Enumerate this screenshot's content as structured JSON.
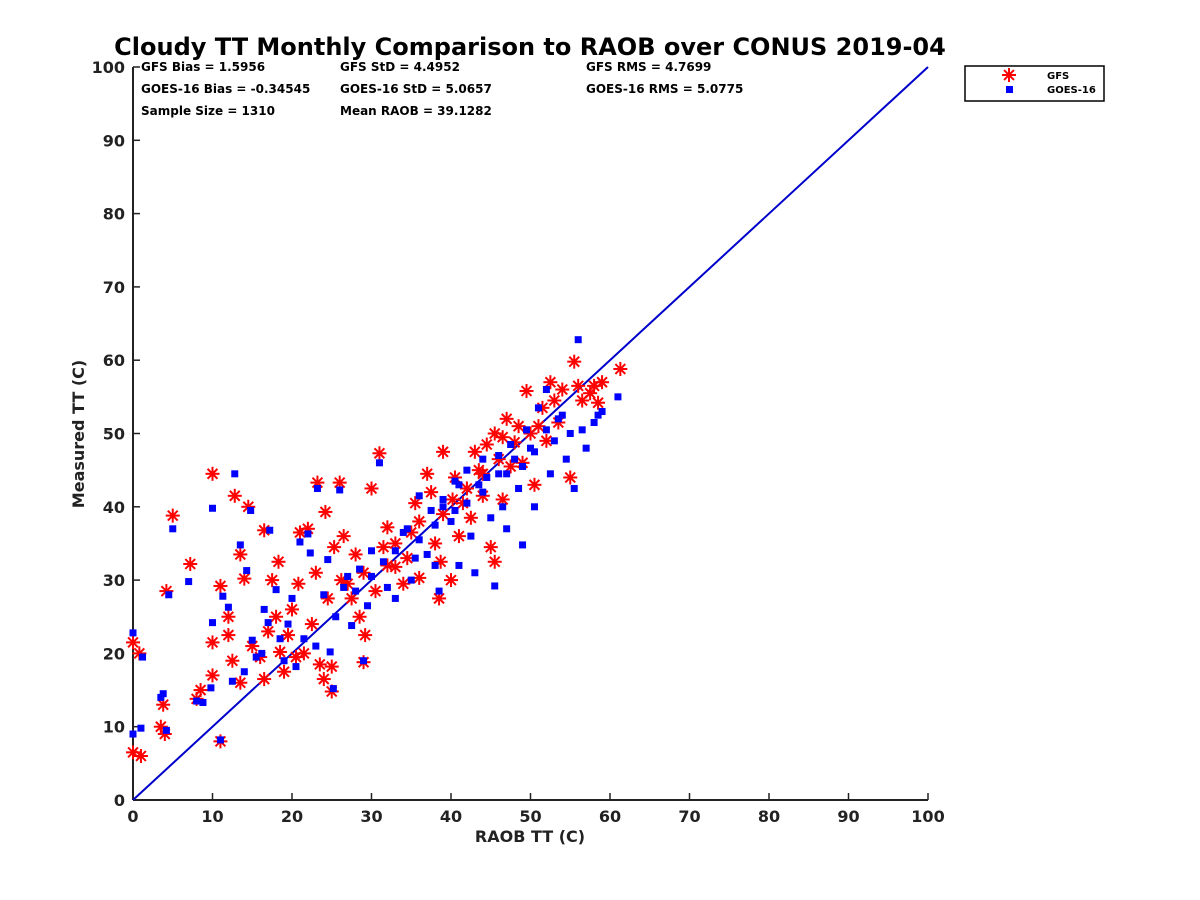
{
  "chart_data": {
    "type": "scatter",
    "title": "Cloudy TT Monthly Comparison to RAOB over CONUS 2019-04",
    "xlabel": "RAOB TT (C)",
    "ylabel": "Measured TT (C)",
    "xlim": [
      0,
      100
    ],
    "ylim": [
      0,
      100
    ],
    "xticks": [
      "0",
      "10",
      "20",
      "30",
      "40",
      "50",
      "60",
      "70",
      "80",
      "90",
      "100"
    ],
    "yticks": [
      "0",
      "10",
      "20",
      "30",
      "40",
      "50",
      "60",
      "70",
      "80",
      "90",
      "100"
    ],
    "grid": false,
    "legend_position": "top-right",
    "annotations": [
      "GFS Bias = 1.5956",
      "GFS StD = 4.4952",
      "GFS RMS = 4.7699",
      "GOES-16 Bias = -0.34545",
      "GOES-16 StD = 5.0657",
      "GOES-16 RMS = 5.0775",
      "Sample Size = 1310",
      "Mean RAOB = 39.1282"
    ],
    "reference_line": {
      "x": [
        0,
        100
      ],
      "y": [
        0,
        100
      ],
      "color": "#0000cc"
    },
    "series": [
      {
        "name": "GFS",
        "marker": "asterisk",
        "color": "#ff0000",
        "points": [
          [
            0,
            21.5
          ],
          [
            0.8,
            20
          ],
          [
            0,
            6.5
          ],
          [
            1,
            6
          ],
          [
            3.5,
            10
          ],
          [
            3.8,
            13
          ],
          [
            4,
            9
          ],
          [
            4.2,
            28.5
          ],
          [
            5,
            38.8
          ],
          [
            7.2,
            32.2
          ],
          [
            8,
            13.8
          ],
          [
            8.5,
            15
          ],
          [
            10,
            17
          ],
          [
            10,
            21.5
          ],
          [
            10,
            44.5
          ],
          [
            11,
            8
          ],
          [
            11,
            29.2
          ],
          [
            12,
            22.5
          ],
          [
            12,
            25
          ],
          [
            12.5,
            19
          ],
          [
            12.8,
            41.5
          ],
          [
            13.5,
            33.5
          ],
          [
            13.5,
            16
          ],
          [
            14,
            30.2
          ],
          [
            14.5,
            40
          ],
          [
            15,
            21
          ],
          [
            16,
            19.5
          ],
          [
            16.5,
            16.5
          ],
          [
            16.5,
            36.8
          ],
          [
            17,
            23
          ],
          [
            17.5,
            30
          ],
          [
            18,
            25
          ],
          [
            18.3,
            32.5
          ],
          [
            18.5,
            20.2
          ],
          [
            19,
            17.5
          ],
          [
            19.5,
            22.5
          ],
          [
            20,
            26
          ],
          [
            20.5,
            19.5
          ],
          [
            20.8,
            29.5
          ],
          [
            21,
            36.5
          ],
          [
            21.5,
            20
          ],
          [
            22,
            37
          ],
          [
            22.5,
            24
          ],
          [
            23,
            31
          ],
          [
            23.2,
            43.3
          ],
          [
            23.5,
            18.5
          ],
          [
            24,
            16.5
          ],
          [
            24.2,
            39.3
          ],
          [
            24.5,
            27.5
          ],
          [
            25,
            18.2
          ],
          [
            25,
            14.8
          ],
          [
            25.3,
            34.5
          ],
          [
            26,
            43.3
          ],
          [
            26.2,
            30
          ],
          [
            27,
            29.5
          ],
          [
            28,
            33.5
          ],
          [
            28.5,
            25
          ],
          [
            29,
            18.8
          ],
          [
            29.2,
            22.5
          ],
          [
            30,
            42.5
          ],
          [
            31,
            47.3
          ],
          [
            32,
            37.2
          ],
          [
            33,
            31.8
          ],
          [
            34,
            29.5
          ],
          [
            35.5,
            40.5
          ],
          [
            36,
            30.3
          ],
          [
            37,
            44.5
          ],
          [
            38.5,
            27.5
          ],
          [
            38.7,
            32.5
          ],
          [
            39,
            47.5
          ],
          [
            40,
            30
          ],
          [
            40.2,
            41
          ],
          [
            41,
            36
          ],
          [
            42.5,
            38.5
          ],
          [
            43,
            47.5
          ],
          [
            44,
            44.5
          ],
          [
            45,
            34.5
          ],
          [
            45.5,
            50
          ],
          [
            45.5,
            32.5
          ],
          [
            46.5,
            41
          ],
          [
            47,
            52
          ],
          [
            48,
            48.8
          ],
          [
            49,
            46
          ],
          [
            49.5,
            55.8
          ],
          [
            50.5,
            43
          ],
          [
            51,
            51
          ],
          [
            52,
            49
          ],
          [
            52.5,
            57
          ],
          [
            53,
            54.5
          ],
          [
            53.5,
            51.5
          ],
          [
            54,
            56
          ],
          [
            55,
            44
          ],
          [
            55.5,
            59.8
          ],
          [
            56,
            56.5
          ],
          [
            56.5,
            54.5
          ],
          [
            57.5,
            55.5
          ],
          [
            58,
            56.5
          ],
          [
            58.5,
            54.2
          ],
          [
            59,
            57
          ],
          [
            61.3,
            58.8
          ],
          [
            32,
            32
          ],
          [
            33,
            35
          ],
          [
            34.5,
            33
          ],
          [
            36,
            38
          ],
          [
            37.5,
            42
          ],
          [
            39,
            39
          ],
          [
            40.5,
            44
          ],
          [
            42,
            42.5
          ],
          [
            43.5,
            45
          ],
          [
            44.5,
            48.5
          ],
          [
            46,
            46.5
          ],
          [
            47.5,
            45.5
          ],
          [
            48.5,
            51
          ],
          [
            50,
            50
          ],
          [
            51.5,
            53.5
          ],
          [
            29,
            31
          ],
          [
            30.5,
            28.5
          ],
          [
            31.5,
            34.5
          ],
          [
            27.5,
            27.5
          ],
          [
            26.5,
            36
          ],
          [
            35,
            36.5
          ],
          [
            38,
            35
          ],
          [
            41.5,
            40.5
          ],
          [
            44,
            41.5
          ],
          [
            46.5,
            49.5
          ]
        ]
      },
      {
        "name": "GOES-16",
        "marker": "square",
        "color": "#0000ff",
        "points": [
          [
            0,
            22.8
          ],
          [
            0,
            9
          ],
          [
            1,
            9.8
          ],
          [
            1.2,
            19.5
          ],
          [
            3.5,
            14
          ],
          [
            3.8,
            14.5
          ],
          [
            4.2,
            9.5
          ],
          [
            4.5,
            28
          ],
          [
            5,
            37
          ],
          [
            7,
            29.8
          ],
          [
            8,
            13.5
          ],
          [
            8.8,
            13.3
          ],
          [
            9.8,
            15.3
          ],
          [
            10,
            24.2
          ],
          [
            10,
            39.8
          ],
          [
            11,
            8.2
          ],
          [
            11.3,
            27.8
          ],
          [
            12,
            26.3
          ],
          [
            12.5,
            16.2
          ],
          [
            12.8,
            44.5
          ],
          [
            13.5,
            34.8
          ],
          [
            14,
            17.5
          ],
          [
            14.3,
            31.3
          ],
          [
            14.8,
            39.5
          ],
          [
            15,
            21.8
          ],
          [
            15.5,
            19.5
          ],
          [
            16.2,
            20
          ],
          [
            16.5,
            26
          ],
          [
            17,
            24.2
          ],
          [
            17.2,
            36.8
          ],
          [
            18,
            28.7
          ],
          [
            18.5,
            22
          ],
          [
            19,
            19
          ],
          [
            19.5,
            24
          ],
          [
            20,
            27.5
          ],
          [
            20.5,
            18.2
          ],
          [
            21,
            35.2
          ],
          [
            21.5,
            22
          ],
          [
            22,
            36.3
          ],
          [
            22.3,
            33.7
          ],
          [
            23,
            21
          ],
          [
            23.2,
            42.5
          ],
          [
            24,
            28
          ],
          [
            24.5,
            32.8
          ],
          [
            24.8,
            20.2
          ],
          [
            25.2,
            15.2
          ],
          [
            25.5,
            25
          ],
          [
            26,
            42.3
          ],
          [
            26.5,
            29
          ],
          [
            27.5,
            23.8
          ],
          [
            28.5,
            31.5
          ],
          [
            29,
            19
          ],
          [
            29.5,
            26.5
          ],
          [
            30,
            34
          ],
          [
            31,
            46
          ],
          [
            32,
            29
          ],
          [
            33,
            27.5
          ],
          [
            34,
            36.5
          ],
          [
            35,
            30
          ],
          [
            36,
            41.5
          ],
          [
            37,
            33.5
          ],
          [
            38,
            32
          ],
          [
            38.5,
            28.5
          ],
          [
            39,
            40
          ],
          [
            40,
            38
          ],
          [
            40.5,
            43.5
          ],
          [
            41,
            32
          ],
          [
            42,
            45
          ],
          [
            42.5,
            36
          ],
          [
            43,
            31
          ],
          [
            44,
            46.5
          ],
          [
            45,
            38.5
          ],
          [
            45.5,
            29.2
          ],
          [
            46,
            44.5
          ],
          [
            46.5,
            40
          ],
          [
            47,
            37
          ],
          [
            48,
            46.5
          ],
          [
            48.5,
            42.5
          ],
          [
            49,
            34.8
          ],
          [
            49.5,
            50.5
          ],
          [
            50,
            48
          ],
          [
            50.5,
            40
          ],
          [
            51,
            53.5
          ],
          [
            52,
            56
          ],
          [
            52.5,
            44.5
          ],
          [
            53,
            49
          ],
          [
            54,
            52.5
          ],
          [
            54.5,
            46.5
          ],
          [
            55,
            50
          ],
          [
            55.5,
            42.5
          ],
          [
            56,
            62.8
          ],
          [
            56.5,
            50.5
          ],
          [
            57,
            48
          ],
          [
            58,
            51.5
          ],
          [
            58.5,
            52.5
          ],
          [
            59,
            53
          ],
          [
            61,
            55
          ],
          [
            33,
            34
          ],
          [
            34.5,
            37
          ],
          [
            36,
            35.5
          ],
          [
            37.5,
            39.5
          ],
          [
            39,
            41
          ],
          [
            40.5,
            39.5
          ],
          [
            42,
            40.5
          ],
          [
            43.5,
            43
          ],
          [
            44.5,
            44
          ],
          [
            46,
            47
          ],
          [
            47.5,
            48.5
          ],
          [
            49,
            45.5
          ],
          [
            50.5,
            47.5
          ],
          [
            52,
            50.5
          ],
          [
            53.5,
            52
          ],
          [
            31.5,
            32.5
          ],
          [
            30,
            30.5
          ],
          [
            28,
            28.5
          ],
          [
            27,
            30.5
          ],
          [
            35.5,
            33
          ],
          [
            38,
            37.5
          ],
          [
            41,
            43
          ],
          [
            44,
            42
          ],
          [
            47,
            44.5
          ]
        ]
      }
    ]
  }
}
